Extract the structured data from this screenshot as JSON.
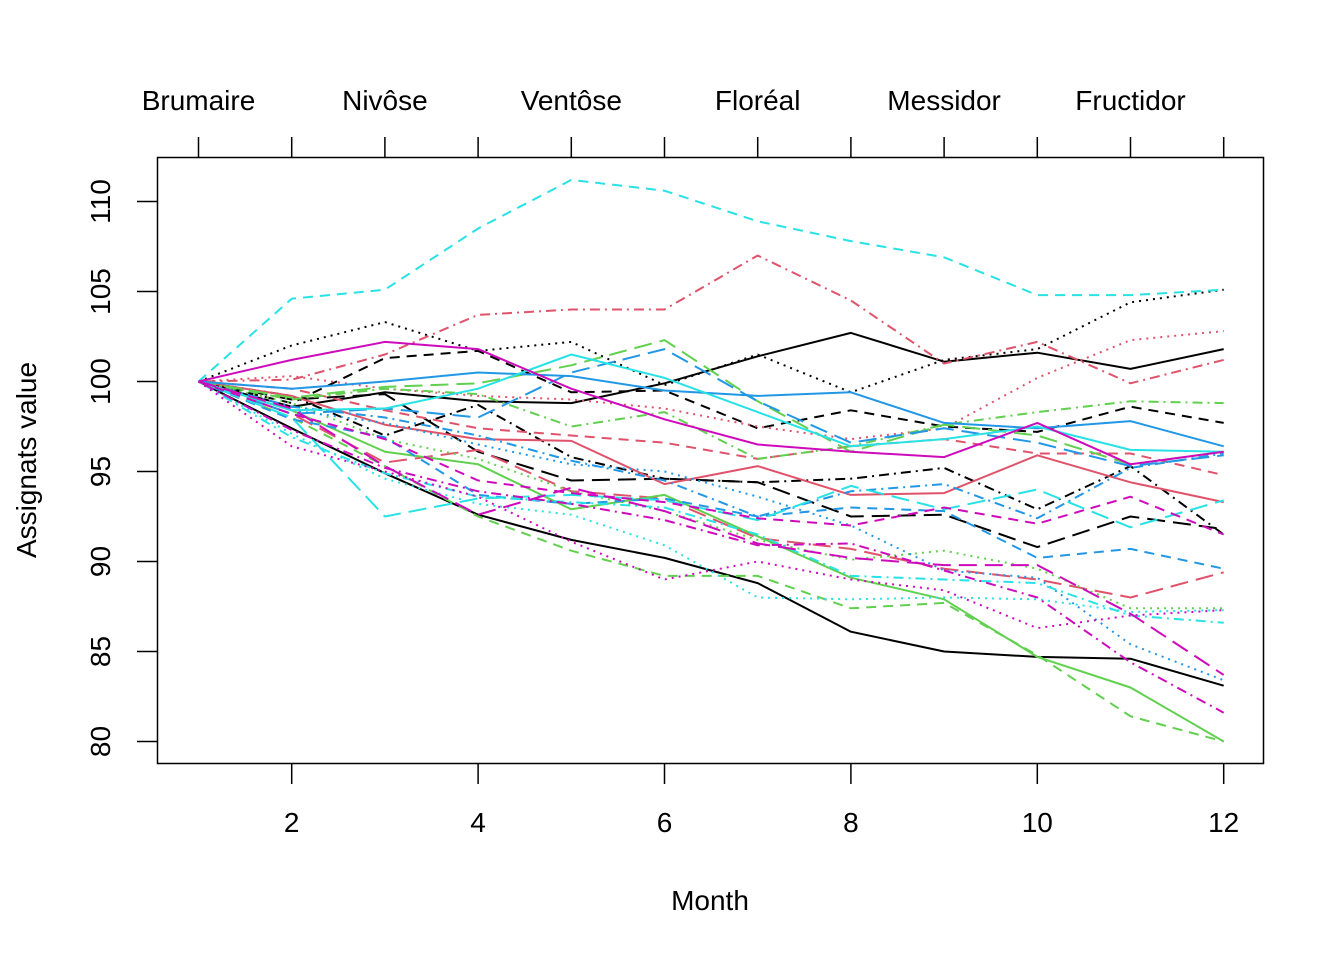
{
  "chart_data": {
    "type": "line",
    "xlabel": "Month",
    "ylabel": "Assignats value",
    "xlim": [
      1,
      12
    ],
    "ylim": [
      80,
      111
    ],
    "x_ticks": [
      2,
      4,
      6,
      8,
      10,
      12
    ],
    "y_ticks": [
      80,
      85,
      90,
      95,
      100,
      105,
      110
    ],
    "top_axis": {
      "ticks": [
        1,
        2,
        3,
        4,
        5,
        6,
        7,
        8,
        9,
        10,
        11,
        12
      ],
      "labels": [
        {
          "x": 1,
          "text": "Brumaire"
        },
        {
          "x": 3,
          "text": "Nivôse"
        },
        {
          "x": 5,
          "text": "Ventôse"
        },
        {
          "x": 7,
          "text": "Floréal"
        },
        {
          "x": 9,
          "text": "Messidor"
        },
        {
          "x": 11,
          "text": "Fructidor"
        }
      ]
    },
    "x": [
      1,
      2,
      3,
      4,
      5,
      6,
      7,
      8,
      9,
      10,
      11,
      12
    ],
    "colors": {
      "black": "#000000",
      "red": "#DF536B",
      "green": "#61D04F",
      "blue": "#2297E6",
      "cyan": "#28E2E5",
      "magenta": "#CD0BBC"
    },
    "series": [
      {
        "color": "black",
        "dash": "solid",
        "values": [
          100,
          97.4,
          94.9,
          92.6,
          91.2,
          90.2,
          88.8,
          86.1,
          85.0,
          84.7,
          84.6,
          83.1
        ]
      },
      {
        "color": "black",
        "dash": "solid",
        "values": [
          100,
          98.6,
          99.4,
          98.9,
          98.8,
          99.9,
          101.4,
          102.7,
          101.1,
          101.6,
          100.7,
          101.8
        ]
      },
      {
        "color": "black",
        "dash": "dotted",
        "values": [
          100,
          102.0,
          103.3,
          101.7,
          102.2,
          99.8,
          101.5,
          99.4,
          101.2,
          101.8,
          104.4,
          105.1
        ]
      },
      {
        "color": "black",
        "dash": "dashed",
        "values": [
          100,
          98.8,
          101.3,
          101.7,
          99.4,
          99.5,
          97.4,
          98.4,
          97.5,
          97.2,
          98.6,
          97.7
        ]
      },
      {
        "color": "black",
        "dash": "longdash",
        "values": [
          100,
          99.0,
          99.3,
          96.1,
          94.5,
          94.6,
          94.4,
          92.5,
          92.6,
          90.8,
          92.5,
          91.8
        ]
      },
      {
        "color": "black",
        "dash": "dotdash",
        "values": [
          100,
          99.2,
          97.0,
          98.7,
          95.8,
          94.6,
          94.4,
          94.6,
          95.2,
          92.9,
          95.3,
          91.5
        ]
      },
      {
        "color": "red",
        "dash": "solid",
        "values": [
          100,
          99.2,
          97.6,
          96.8,
          96.7,
          94.3,
          95.3,
          93.7,
          93.8,
          95.9,
          94.4,
          93.3
        ]
      },
      {
        "color": "red",
        "dash": "dotdash",
        "values": [
          100,
          100.1,
          101.5,
          103.7,
          104.0,
          104.0,
          107.0,
          104.5,
          101.0,
          102.2,
          99.9,
          101.2
        ]
      },
      {
        "color": "red",
        "dash": "dotted",
        "values": [
          100,
          100.3,
          99.6,
          99.2,
          99.0,
          98.5,
          97.5,
          96.8,
          97.4,
          100.2,
          102.3,
          102.8
        ]
      },
      {
        "color": "red",
        "dash": "dashed",
        "values": [
          100,
          99.6,
          98.4,
          97.4,
          97.0,
          96.6,
          95.7,
          96.4,
          96.8,
          96.0,
          96.0,
          94.8
        ]
      },
      {
        "color": "red",
        "dash": "longdash",
        "values": [
          100,
          98.2,
          95.5,
          96.2,
          93.9,
          93.5,
          91.3,
          90.7,
          89.6,
          89.0,
          88.0,
          89.4
        ]
      },
      {
        "color": "green",
        "dash": "solid",
        "values": [
          100,
          98.4,
          96.1,
          95.4,
          92.9,
          93.7,
          91.4,
          89.1,
          87.9,
          84.7,
          83.0,
          80.0
        ]
      },
      {
        "color": "green",
        "dash": "dashed",
        "values": [
          100,
          98.0,
          95.3,
          92.5,
          90.6,
          89.2,
          89.2,
          87.4,
          87.7,
          84.8,
          81.4,
          80.0
        ]
      },
      {
        "color": "green",
        "dash": "dotdash",
        "values": [
          100,
          99.0,
          99.6,
          99.3,
          97.5,
          98.3,
          95.7,
          96.4,
          97.6,
          98.3,
          98.9,
          98.8
        ]
      },
      {
        "color": "green",
        "dash": "longdash",
        "values": [
          100,
          99.1,
          99.7,
          99.9,
          100.9,
          102.3,
          98.9,
          96.1,
          97.6,
          97.0,
          95.4,
          96.1
        ]
      },
      {
        "color": "green",
        "dash": "dotted",
        "values": [
          100,
          98.8,
          96.8,
          95.7,
          93.9,
          92.8,
          91.2,
          90.1,
          90.6,
          89.6,
          87.4,
          87.4
        ]
      },
      {
        "color": "blue",
        "dash": "solid",
        "values": [
          100,
          99.6,
          100.0,
          100.5,
          100.3,
          99.5,
          99.2,
          99.4,
          97.7,
          97.4,
          97.8,
          96.4
        ]
      },
      {
        "color": "blue",
        "dash": "longdash",
        "values": [
          100,
          98.2,
          98.5,
          98.0,
          100.5,
          101.8,
          98.9,
          96.6,
          97.4,
          96.6,
          95.3,
          95.9
        ]
      },
      {
        "color": "blue",
        "dash": "dashed",
        "values": [
          100,
          97.9,
          96.9,
          93.7,
          93.2,
          93.5,
          92.5,
          93.0,
          92.8,
          90.2,
          90.7,
          89.6
        ]
      },
      {
        "color": "blue",
        "dash": "dotted",
        "values": [
          100,
          98.4,
          97.7,
          96.5,
          95.4,
          95.0,
          93.6,
          92.0,
          89.5,
          89.1,
          85.4,
          83.4
        ]
      },
      {
        "color": "blue",
        "dash": "dotdash",
        "values": [
          100,
          98.6,
          98.0,
          97.0,
          95.6,
          94.5,
          92.5,
          93.9,
          94.3,
          92.4,
          95.2,
          96.0
        ]
      },
      {
        "color": "cyan",
        "dash": "dashed",
        "values": [
          100,
          104.6,
          105.1,
          108.5,
          111.2,
          110.6,
          108.9,
          107.8,
          106.9,
          104.8,
          104.8,
          105.1
        ]
      },
      {
        "color": "cyan",
        "dash": "solid",
        "values": [
          100,
          98.4,
          98.5,
          99.6,
          101.5,
          100.2,
          98.3,
          96.4,
          96.8,
          97.5,
          96.2,
          96.1
        ]
      },
      {
        "color": "cyan",
        "dash": "longdash",
        "values": [
          100,
          98.0,
          92.5,
          93.5,
          93.7,
          93.4,
          92.3,
          94.2,
          92.9,
          94.0,
          91.9,
          93.4
        ]
      },
      {
        "color": "cyan",
        "dash": "dotted",
        "values": [
          100,
          97.1,
          94.6,
          93.2,
          92.6,
          90.9,
          88.0,
          87.9,
          88.0,
          87.9,
          87.2,
          87.3
        ]
      },
      {
        "color": "cyan",
        "dash": "dotdash",
        "values": [
          100,
          96.9,
          94.9,
          93.6,
          93.3,
          93.0,
          91.5,
          89.2,
          89.0,
          88.8,
          87.0,
          86.6
        ]
      },
      {
        "color": "magenta",
        "dash": "solid",
        "values": [
          100,
          101.2,
          102.2,
          101.8,
          99.6,
          97.9,
          96.5,
          96.1,
          95.8,
          97.7,
          95.4,
          96.1
        ]
      },
      {
        "color": "magenta",
        "dash": "longdash",
        "values": [
          100,
          98.5,
          95.3,
          92.6,
          94.1,
          92.8,
          91.0,
          90.2,
          89.8,
          89.8,
          87.1,
          83.7
        ]
      },
      {
        "color": "magenta",
        "dash": "dotdash",
        "values": [
          100,
          97.3,
          95.2,
          93.9,
          93.2,
          92.3,
          90.9,
          91.0,
          89.5,
          88.0,
          84.4,
          81.6
        ]
      },
      {
        "color": "magenta",
        "dash": "dotted",
        "values": [
          100,
          96.4,
          95.0,
          93.6,
          91.1,
          89.0,
          90.0,
          89.0,
          88.4,
          86.3,
          87.0,
          87.3
        ]
      },
      {
        "color": "magenta",
        "dash": "dashed",
        "values": [
          100,
          98.2,
          96.8,
          94.5,
          93.8,
          93.3,
          92.4,
          92.0,
          93.0,
          92.1,
          93.6,
          91.5
        ]
      }
    ]
  }
}
